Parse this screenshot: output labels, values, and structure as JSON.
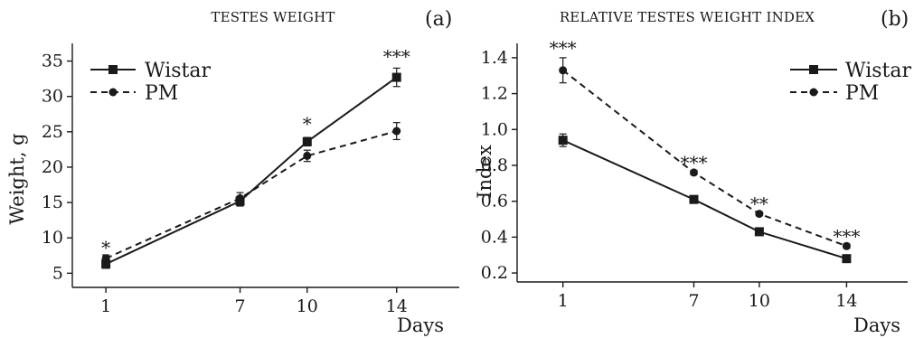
{
  "chart_data": [
    {
      "type": "line",
      "panel_label": "(a)",
      "title": "TESTES WEIGHT",
      "xlabel": "Days",
      "ylabel": "Weight, g",
      "x": [
        1,
        7,
        10,
        14
      ],
      "x_ticks": [
        "1",
        "7",
        "10",
        "14"
      ],
      "ylim": [
        3,
        37.5
      ],
      "y_ticks": [
        5,
        10,
        15,
        20,
        25,
        30,
        35
      ],
      "y_tick_labels": [
        "5",
        "10",
        "15",
        "20",
        "25",
        "30",
        "35"
      ],
      "legend_position": "top-left",
      "series": [
        {
          "name": "Wistar",
          "line": "solid",
          "marker": "square",
          "values": [
            6.3,
            15.2,
            23.6,
            32.7
          ],
          "errors": [
            0.6,
            0.7,
            0.6,
            1.3
          ]
        },
        {
          "name": "PM",
          "line": "dashed",
          "marker": "circle",
          "values": [
            7.1,
            15.6,
            21.6,
            25.1
          ],
          "errors": [
            0.5,
            0.8,
            0.8,
            1.2
          ]
        }
      ],
      "annotations": [
        {
          "x": 1,
          "text": "*",
          "y": 9.0
        },
        {
          "x": 10,
          "text": "*",
          "y": 26.5
        },
        {
          "x": 14,
          "text": "***",
          "y": 36.0
        }
      ]
    },
    {
      "type": "line",
      "panel_label": "(b)",
      "title": "RELATIVE TESTES WEIGHT INDEX",
      "xlabel": "Days",
      "ylabel": "Index",
      "x": [
        1,
        7,
        10,
        14
      ],
      "x_ticks": [
        "1",
        "7",
        "10",
        "14"
      ],
      "ylim": [
        0.15,
        1.48
      ],
      "y_ticks": [
        0.2,
        0.4,
        0.6,
        0.8,
        1.0,
        1.2,
        1.4
      ],
      "y_tick_labels": [
        "0.2",
        "0.4",
        "0.6",
        "0.8",
        "1.0",
        "1.2",
        "1.4"
      ],
      "legend_position": "top-right",
      "series": [
        {
          "name": "Wistar",
          "line": "solid",
          "marker": "square",
          "values": [
            0.94,
            0.61,
            0.43,
            0.28
          ],
          "errors": [
            0.035,
            0.01,
            0.01,
            0.01
          ]
        },
        {
          "name": "PM",
          "line": "dashed",
          "marker": "circle",
          "values": [
            1.33,
            0.76,
            0.53,
            0.35
          ],
          "errors": [
            0.07,
            0.012,
            0.01,
            0.012
          ]
        }
      ],
      "annotations": [
        {
          "x": 1,
          "text": "***",
          "y": 1.47
        },
        {
          "x": 7,
          "text": "***",
          "y": 0.83
        },
        {
          "x": 10,
          "text": "**",
          "y": 0.6
        },
        {
          "x": 14,
          "text": "***",
          "y": 0.42
        }
      ]
    }
  ]
}
